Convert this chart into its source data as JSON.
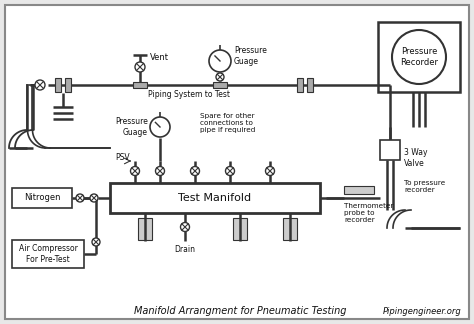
{
  "title": "Manifold Arrangment for Pneumatic Testing",
  "website": "Pipingengineer.org",
  "bg_color": "#e8e8e8",
  "line_color": "#333333",
  "text_color": "#111111",
  "box_fill": "#ffffff",
  "labels": {
    "vent": "Vent",
    "piping_system": "Piping System to Test",
    "pressure_gauge_top": "Pressure\nGuage",
    "pressure_recorder": "Pressure\nRecorder",
    "pressure_gauge_mid": "Pressure\nGuage",
    "spare": "Spare for other\nconnections to\npipe if required",
    "three_way": "3 Way\nValve",
    "to_pressure": "To pressure\nrecorder",
    "psv": "PSV",
    "test_manifold": "Test Manifold",
    "nitrogen": "Nitrogen",
    "air_compressor": "Air Compressor\nFor Pre-Test",
    "drain": "Drain",
    "thermometer": "Thermometer\nprobe to\nrecorder"
  }
}
